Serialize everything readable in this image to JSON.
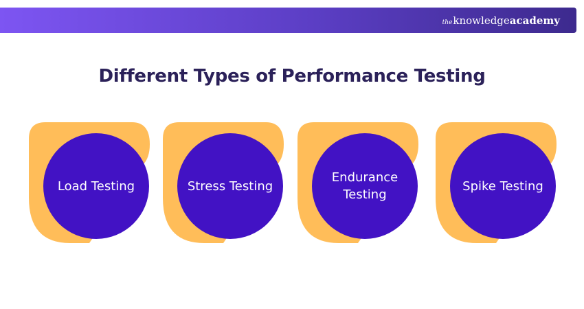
{
  "header": {
    "brand": {
      "the": "the",
      "knowledge": "knowledge",
      "academy": "academy"
    }
  },
  "title": "Different Types of Performance Testing",
  "colors": {
    "banner_start": "#7d55f2",
    "banner_end": "#3d2a8e",
    "title": "#2b2159",
    "blob": "#ffbd59",
    "circle": "#4212c4",
    "circle_text": "#ffffff"
  },
  "types": [
    {
      "label": "Load Testing"
    },
    {
      "label": "Stress Testing"
    },
    {
      "label": "Endurance\nTesting"
    },
    {
      "label": "Spike Testing"
    }
  ]
}
